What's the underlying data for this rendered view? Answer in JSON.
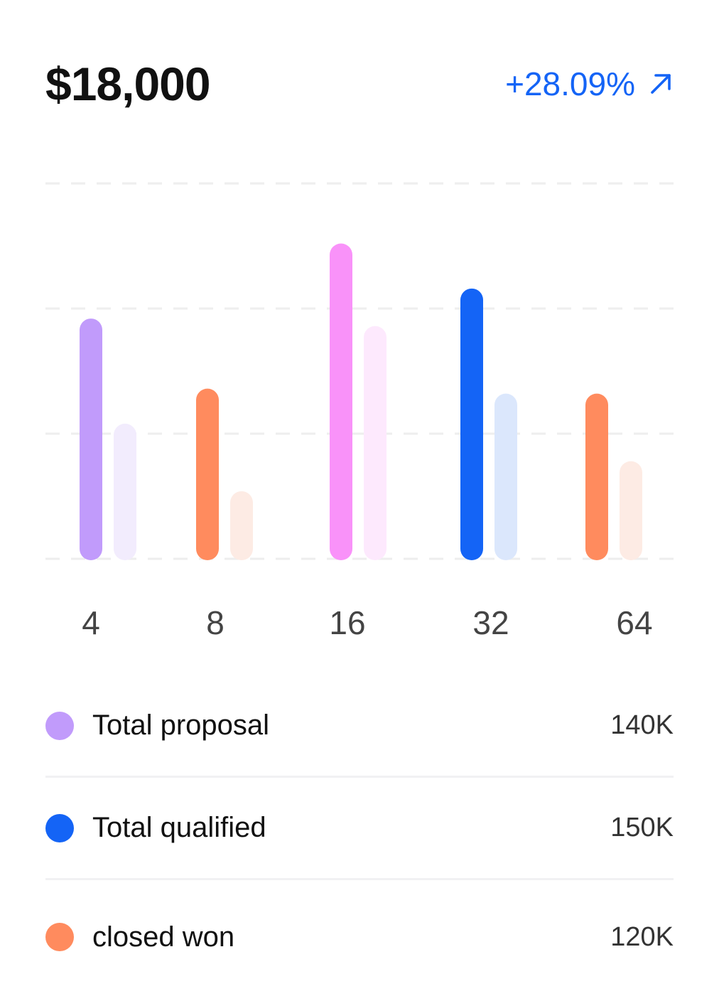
{
  "header": {
    "total": "$18,000",
    "change": "+28.09%",
    "change_icon": "arrow-up-right-icon"
  },
  "colors": {
    "purple": "#c19bfb",
    "purple_light": "#f2ecfd",
    "orange": "#ff8b5e",
    "orange_light": "#fdebe4",
    "pink": "#f992f9",
    "pink_light": "#fde9fd",
    "blue": "#1464f6",
    "blue_light": "#dbe7fc",
    "accent": "#1464f6",
    "grid": "#eeeeee"
  },
  "chart_data": {
    "type": "bar",
    "categories": [
      "4",
      "8",
      "16",
      "32",
      "64"
    ],
    "series": [
      {
        "values": [
          96,
          68,
          126,
          108,
          66
        ]
      },
      {
        "values": [
          54,
          27,
          93,
          66,
          39
        ]
      }
    ],
    "bar_colors": [
      [
        "#c19bfb",
        "#f2ecfd"
      ],
      [
        "#ff8b5e",
        "#fdebe4"
      ],
      [
        "#f992f9",
        "#fde9fd"
      ],
      [
        "#1464f6",
        "#dbe7fc"
      ],
      [
        "#ff8b5e",
        "#fdebe4"
      ]
    ],
    "ylim": [
      0,
      150
    ],
    "grid": true,
    "gridlines": [
      0,
      50,
      100,
      150
    ]
  },
  "legend": [
    {
      "label": "Total proposal",
      "value": "140K",
      "color": "#c19bfb"
    },
    {
      "label": "Total qualified",
      "value": "150K",
      "color": "#1464f6"
    },
    {
      "label": "closed won",
      "value": "120K",
      "color": "#ff8b5e"
    }
  ]
}
